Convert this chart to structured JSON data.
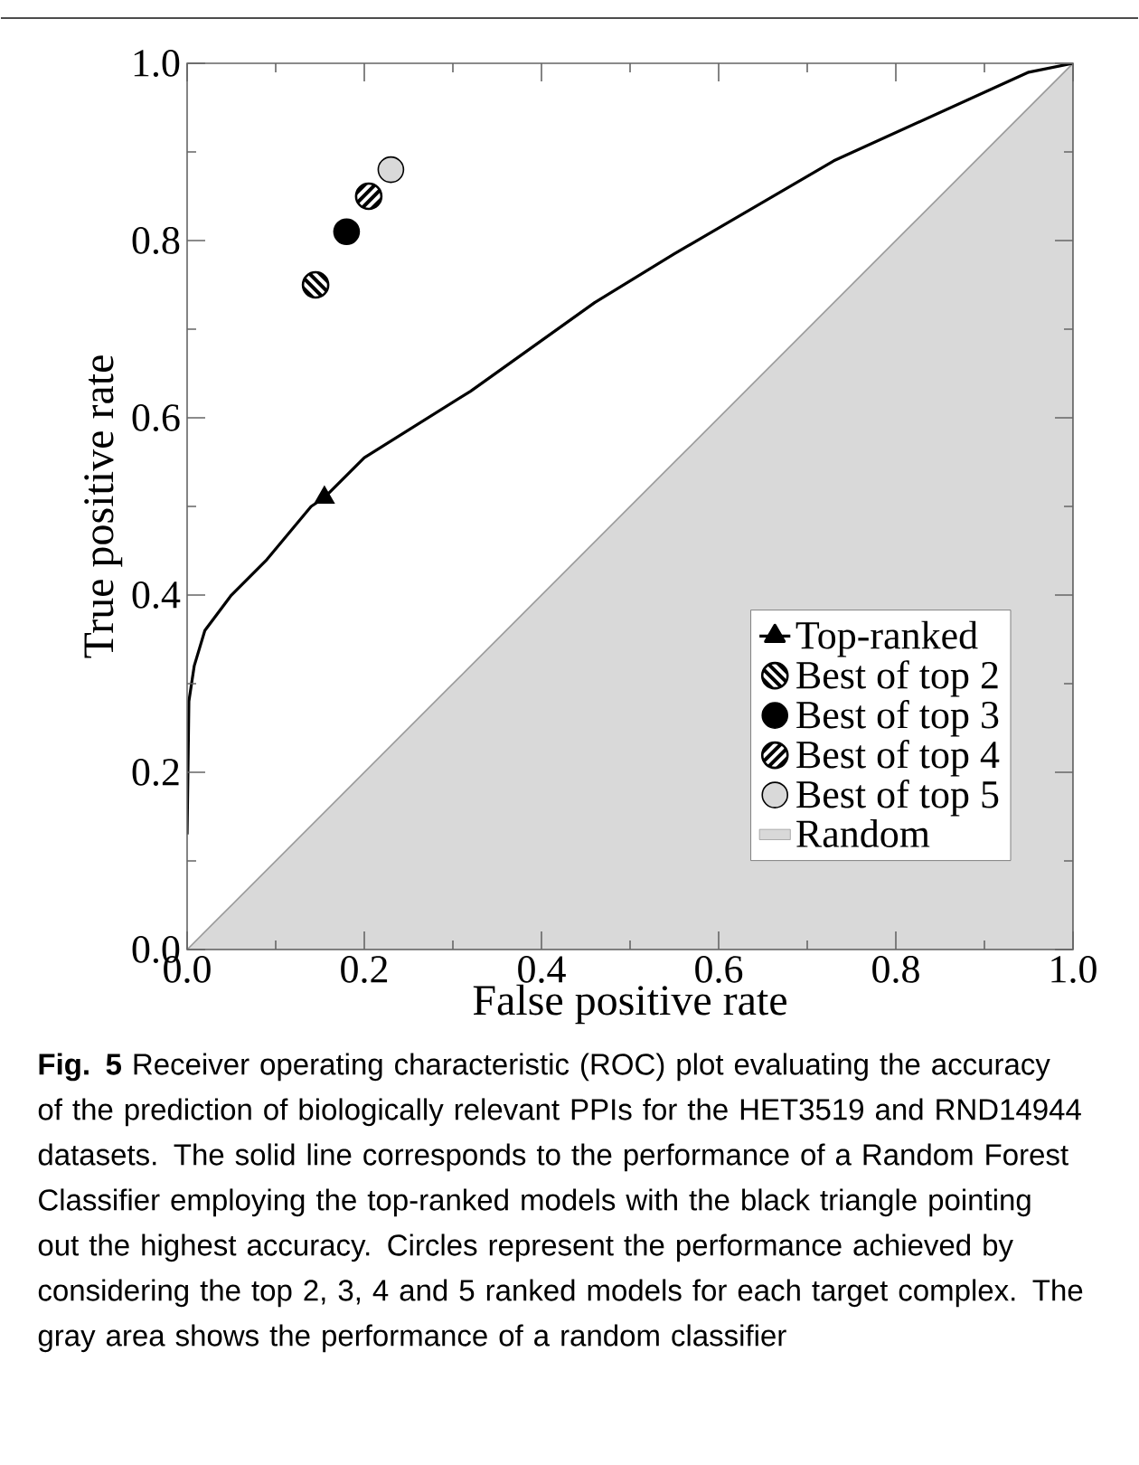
{
  "chart_data": {
    "type": "line",
    "xlabel": "False positive rate",
    "ylabel": "True positive rate",
    "xlim": [
      0,
      1
    ],
    "ylim": [
      0,
      1
    ],
    "xticks": [
      {
        "value": 0,
        "label": "0.0"
      },
      {
        "value": 0.1,
        "label": null
      },
      {
        "value": 0.2,
        "label": "0.2"
      },
      {
        "value": 0.3,
        "label": null
      },
      {
        "value": 0.4,
        "label": "0.4"
      },
      {
        "value": 0.5,
        "label": null
      },
      {
        "value": 0.6,
        "label": "0.6"
      },
      {
        "value": 0.7,
        "label": null
      },
      {
        "value": 0.8,
        "label": "0.8"
      },
      {
        "value": 0.9,
        "label": null
      },
      {
        "value": 1,
        "label": "1.0"
      }
    ],
    "yticks": [
      {
        "value": 0,
        "label": "0.0"
      },
      {
        "value": 0.1,
        "label": null
      },
      {
        "value": 0.2,
        "label": "0.2"
      },
      {
        "value": 0.3,
        "label": null
      },
      {
        "value": 0.4,
        "label": "0.4"
      },
      {
        "value": 0.5,
        "label": null
      },
      {
        "value": 0.6,
        "label": "0.6"
      },
      {
        "value": 0.7,
        "label": null
      },
      {
        "value": 0.8,
        "label": "0.8"
      },
      {
        "value": 0.9,
        "label": null
      },
      {
        "value": 1,
        "label": "1.0"
      }
    ],
    "grid": false,
    "legend": "bottom right",
    "series": [
      {
        "name": "Top-ranked",
        "color": "#000000",
        "marker": "none",
        "line_style": "solid",
        "x": [
          0,
          0.002,
          0.008,
          0.02,
          0.05,
          0.09,
          0.14,
          0.155,
          0.2,
          0.32,
          0.46,
          0.55,
          0.73,
          0.95,
          1
        ],
        "values": [
          0.13,
          0.28,
          0.32,
          0.36,
          0.4,
          0.44,
          0.5,
          0.51,
          0.555,
          0.63,
          0.73,
          0.785,
          0.89,
          0.99,
          1
        ]
      },
      {
        "type": "scatter",
        "color": "#000000",
        "marker": "triangle",
        "x": [
          0.155
        ],
        "values": [
          0.51
        ]
      },
      {
        "name": "Best of top 2",
        "type": "scatter",
        "color": "#000000",
        "marker": "circle",
        "x": [
          0.145
        ],
        "values": [
          0.75
        ]
      },
      {
        "name": "Best of top 3",
        "type": "scatter",
        "color": "#000000",
        "marker": "circle",
        "x": [
          0.18
        ],
        "values": [
          0.81
        ]
      },
      {
        "name": "Best of top 4",
        "type": "scatter",
        "color": "#000000",
        "marker": "circle",
        "x": [
          0.205
        ],
        "values": [
          0.85
        ]
      },
      {
        "name": "Best of top 5",
        "type": "scatter",
        "color": "#d9d9d9",
        "marker": "circle",
        "x": [
          0.23
        ],
        "values": [
          0.88
        ]
      },
      {
        "name": "Random",
        "type": "area",
        "color": "#d9d9d9",
        "x": [
          0,
          1
        ],
        "values": [
          0,
          1
        ]
      }
    ],
    "annotations": [
      "**Fig. 5** Receiver operating characteristic (ROC) plot evaluating the accuracy of the prediction of biologically relevant PPIs for the HET3519 and RND14944 datasets. The solid line corresponds to the performance of a Random Forest Classifier employing the top-ranked models with the black triangle pointing out the highest accuracy. Circles represent the performance achieved by considering the top 2, 3, 4 and 5 ranked models for each target complex. The gray area shows the performance of a random classifier"
    ]
  }
}
